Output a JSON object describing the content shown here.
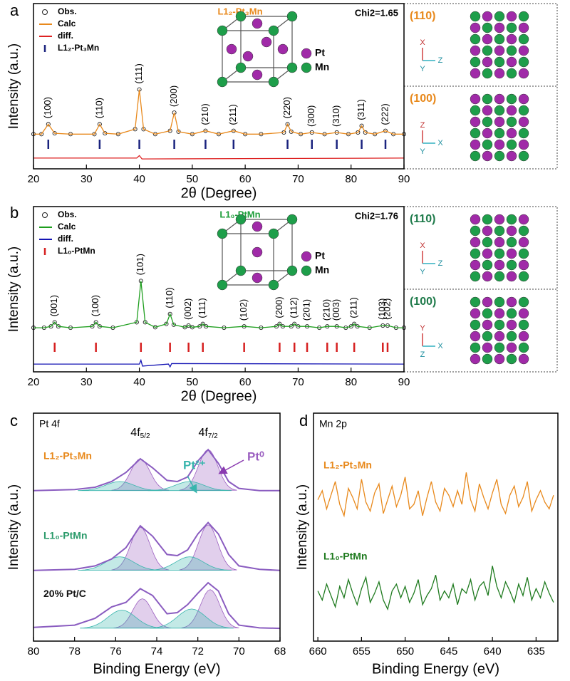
{
  "chart_data": [
    {
      "panel": "a",
      "type": "line",
      "title": "L1₂-Pt₃Mn",
      "title_color": "#e8891c",
      "annotation": "Chi2=1.65",
      "xlabel": "2θ (Degree)",
      "ylabel": "Intensity (a.u.)",
      "xlim": [
        20,
        90
      ],
      "ylim": [
        0,
        100
      ],
      "xticks": [
        20,
        30,
        40,
        50,
        60,
        70,
        80,
        90
      ],
      "series": [
        {
          "name": "Obs.",
          "color": "#222222",
          "style": "markers",
          "x": [
            20,
            21.5,
            22.8,
            24,
            27,
            31.5,
            32.5,
            33.5,
            36,
            39.2,
            40,
            40.8,
            43,
            45.8,
            46.6,
            47.4,
            50,
            52.5,
            55,
            57.8,
            60,
            63,
            67.3,
            68,
            68.7,
            70.5,
            72.6,
            75,
            77.3,
            79.5,
            81.3,
            82,
            82.7,
            84.5,
            86.5,
            88,
            90
          ],
          "values": [
            21,
            21,
            27,
            21.5,
            21,
            21,
            27,
            21.5,
            21,
            24,
            48,
            24,
            21,
            23,
            34,
            22.5,
            21,
            23,
            21,
            23,
            21,
            21,
            22,
            27,
            22.5,
            21,
            22,
            21,
            22,
            21,
            22,
            26,
            22,
            21,
            23,
            21,
            21
          ]
        },
        {
          "name": "Calc",
          "color": "#e8891c",
          "x": [
            20,
            21.5,
            22.8,
            24,
            27,
            31.5,
            32.5,
            33.5,
            36,
            39.2,
            40,
            40.8,
            43,
            45.8,
            46.6,
            47.4,
            50,
            52.5,
            55,
            57.8,
            60,
            63,
            67.3,
            68,
            68.7,
            70.5,
            72.6,
            75,
            77.3,
            79.5,
            81.3,
            82,
            82.7,
            84.5,
            86.5,
            88,
            90
          ],
          "values": [
            21,
            21,
            27,
            21.5,
            21,
            21,
            27,
            21.5,
            21,
            24,
            48,
            24,
            21,
            23,
            34,
            22.5,
            21,
            23,
            21,
            23,
            21,
            21,
            22,
            27,
            22.5,
            21,
            22,
            21,
            22,
            21,
            22,
            26,
            22,
            21,
            23,
            21,
            21
          ]
        },
        {
          "name": "diff.",
          "color": "#dd2222",
          "x": [
            20,
            39.5,
            40,
            40.5,
            90
          ],
          "values": [
            6.5,
            6.5,
            8,
            6,
            6.5
          ]
        }
      ],
      "reflections": {
        "name": "L1₂-Pt₃Mn",
        "color": "#1a237e",
        "x": [
          22.8,
          32.5,
          40,
          46.6,
          52.5,
          57.8,
          68,
          72.6,
          77.3,
          82,
          86.5
        ],
        "labels": [
          "(100)",
          "(110)",
          "(111)",
          "(200)",
          "(210)",
          "(211)",
          "(220)",
          "(300)",
          "(310)",
          "(311)",
          "(222)"
        ]
      },
      "inset": {
        "legend": [
          {
            "name": "Pt",
            "color": "#a02aa8"
          },
          {
            "name": "Mn",
            "color": "#1e9e4a"
          }
        ],
        "views": [
          {
            "label": "(110)",
            "color": "#e8891c",
            "axes": [
              "X",
              "Z",
              "Y"
            ]
          },
          {
            "label": "(100)",
            "color": "#e8891c",
            "axes": [
              "Z",
              "X",
              "Y"
            ]
          }
        ]
      }
    },
    {
      "panel": "b",
      "type": "line",
      "title": "L1₀-PtMn",
      "title_color": "#1e9e3a",
      "annotation": "Chi2=1.76",
      "xlabel": "2θ (Degree)",
      "ylabel": "Intensity (a.u.)",
      "xlim": [
        20,
        90
      ],
      "ylim": [
        0,
        100
      ],
      "xticks": [
        20,
        30,
        40,
        50,
        60,
        70,
        80,
        90
      ],
      "series": [
        {
          "name": "Obs.",
          "color": "#222222",
          "style": "markers",
          "x": [
            20,
            22,
            23.3,
            24,
            24.7,
            27,
            31.1,
            31.8,
            32.5,
            35,
            39.5,
            40.3,
            41.1,
            43,
            45.1,
            45.8,
            46.5,
            48.6,
            49.3,
            50,
            51.4,
            52,
            52.6,
            56,
            59.8,
            63,
            65.9,
            66.5,
            67.1,
            68.7,
            69.3,
            70,
            71.7,
            74,
            75.5,
            77.3,
            79,
            80,
            80.6,
            81.2,
            83.5,
            86,
            86.9,
            88.5,
            90
          ],
          "values": [
            26.7,
            26.7,
            27.5,
            30,
            27.5,
            26.7,
            27.5,
            30,
            27.5,
            26.7,
            30,
            55,
            30,
            27,
            29,
            35,
            28.5,
            27,
            28,
            27,
            27.5,
            29,
            27.5,
            26.7,
            27.5,
            26.7,
            27.5,
            29,
            27.5,
            27.5,
            29,
            27.5,
            27.5,
            26.7,
            27.5,
            27.5,
            26.7,
            27.5,
            29,
            27.5,
            26.7,
            28,
            28,
            26.7,
            26.7
          ]
        },
        {
          "name": "Calc",
          "color": "#1e9e1e",
          "x": [
            20,
            22,
            23.3,
            24,
            24.7,
            27,
            31.1,
            31.8,
            32.5,
            35,
            39.5,
            40.3,
            41.1,
            43,
            45.1,
            45.8,
            46.5,
            48.6,
            49.3,
            50,
            51.4,
            52,
            52.6,
            56,
            59.8,
            63,
            65.9,
            66.5,
            67.1,
            68.7,
            69.3,
            70,
            71.7,
            74,
            75.5,
            77.3,
            79,
            80,
            80.6,
            81.2,
            83.5,
            86,
            86.9,
            88.5,
            90
          ],
          "values": [
            26.7,
            26.7,
            27.5,
            30,
            27.5,
            26.7,
            27.5,
            30,
            27.5,
            26.7,
            30,
            55,
            30,
            27,
            29,
            35,
            28.5,
            27,
            28,
            27,
            27.5,
            29,
            27.5,
            26.7,
            27.5,
            26.7,
            27.5,
            29,
            27.5,
            27.5,
            29,
            27.5,
            27.5,
            26.7,
            27.5,
            27.5,
            26.7,
            27.5,
            29,
            27.5,
            26.7,
            28,
            28,
            26.7,
            26.7
          ]
        },
        {
          "name": "diff.",
          "color": "#1414b4",
          "x": [
            20,
            40,
            40.3,
            40.6,
            45.5,
            45.8,
            46.1,
            90
          ],
          "values": [
            4.7,
            4.7,
            7,
            3.5,
            4.7,
            3,
            5,
            4.7
          ]
        }
      ],
      "reflections": {
        "name": "L1₀-PtMn",
        "color": "#d62020",
        "x": [
          24,
          31.8,
          40.3,
          45.8,
          49.3,
          52,
          59.8,
          66.5,
          69.3,
          71.7,
          75.5,
          77.3,
          80.6,
          86,
          86.9
        ],
        "labels": [
          "(001)",
          "(100)",
          "(101)",
          "(110)",
          "(002)",
          "(111)",
          "(102)",
          "(200)",
          "(112)",
          "(201)",
          "(210)",
          "(003)",
          "(211)",
          "(103)",
          "(202)"
        ]
      },
      "inset": {
        "legend": [
          {
            "name": "Pt",
            "color": "#a02aa8"
          },
          {
            "name": "Mn",
            "color": "#1e9e4a"
          }
        ],
        "views": [
          {
            "label": "(110)",
            "color": "#1e7a4a",
            "axes": [
              "X",
              "Z",
              "Y"
            ]
          },
          {
            "label": "(100)",
            "color": "#1e7a4a",
            "axes": [
              "Y",
              "X",
              "Z"
            ]
          }
        ]
      }
    },
    {
      "panel": "c",
      "type": "line",
      "title": "Pt 4f",
      "xlabel": "Binding Energy (eV)",
      "ylabel": "Intensity (a.u.)",
      "xlim": [
        80,
        68
      ],
      "ylim": [
        0,
        100
      ],
      "xticks": [
        80,
        78,
        76,
        74,
        72,
        70,
        68
      ],
      "peak_labels": [
        {
          "x": 74.8,
          "text": "4f",
          "sub": "5/2"
        },
        {
          "x": 71.5,
          "text": "4f",
          "sub": "7/2"
        }
      ],
      "species": [
        {
          "name": "Pt⁰",
          "color": "#9b5fc0"
        },
        {
          "name": "Pt²⁺",
          "color": "#38b5ad"
        }
      ],
      "series": [
        {
          "name": "L1₂-Pt₃Mn",
          "color": "#8a5cc0",
          "name_color": "#e8891c",
          "baseline": 66,
          "x": [
            80,
            78,
            77,
            76.2,
            75.5,
            74.8,
            74.2,
            73.5,
            73,
            72.5,
            72,
            71.5,
            71,
            70.5,
            70,
            69,
            68
          ],
          "values": [
            66,
            66.5,
            67.5,
            70,
            74,
            80,
            76,
            70.5,
            70,
            72,
            79,
            84,
            78,
            70,
            67,
            66,
            66
          ],
          "components": [
            {
              "centers": [
                74.8,
                71.5
              ],
              "heights": [
                14,
                18
              ],
              "width": 1.1
            },
            {
              "centers": [
                75.8,
                72.4
              ],
              "heights": [
                4,
                4
              ],
              "width": 1.6
            }
          ]
        },
        {
          "name": "L1₀-PtMn",
          "color": "#8a5cc0",
          "name_color": "#2a9a6a",
          "baseline": 31,
          "x": [
            80,
            78,
            77,
            76.2,
            75.5,
            74.8,
            74.2,
            73.5,
            73,
            72.5,
            72,
            71.5,
            71,
            70.5,
            70,
            69,
            68
          ],
          "values": [
            31,
            31.5,
            33,
            36,
            41,
            50.6,
            46,
            38,
            37.5,
            40,
            47,
            52,
            47,
            38,
            33,
            31.5,
            31
          ],
          "components": [
            {
              "centers": [
                74.8,
                71.5
              ],
              "heights": [
                19,
                20
              ],
              "width": 1.1
            },
            {
              "centers": [
                75.8,
                72.4
              ],
              "heights": [
                6,
                6
              ],
              "width": 1.6
            }
          ]
        },
        {
          "name": "20% Pt/C",
          "color": "#8a5cc0",
          "name_color": "#111111",
          "baseline": 5.6,
          "x": [
            80,
            78,
            77,
            76.2,
            75.5,
            74.8,
            74.2,
            73.5,
            73,
            72.5,
            72,
            71.5,
            71,
            70.5,
            70,
            69,
            68
          ],
          "values": [
            6,
            7,
            10,
            15,
            17,
            23,
            20,
            12,
            12.5,
            16,
            21,
            25.6,
            22,
            12,
            7,
            5.8,
            5.6
          ],
          "components": [
            {
              "centers": [
                74.7,
                71.4
              ],
              "heights": [
                13,
                17
              ],
              "width": 1.1
            },
            {
              "centers": [
                75.7,
                72.3
              ],
              "heights": [
                8,
                8.5
              ],
              "width": 1.6
            }
          ]
        }
      ]
    },
    {
      "panel": "d",
      "type": "line",
      "title": "Mn 2p",
      "xlabel": "Binding Energy (eV)",
      "ylabel": "Intensity (a.u.)",
      "xlim": [
        660.5,
        632.5
      ],
      "ylim": [
        0,
        100
      ],
      "xticks": [
        660,
        655,
        650,
        645,
        640,
        635
      ],
      "series": [
        {
          "name": "L1₂-Pt₃Mn",
          "color": "#e8891c",
          "x": [
            660,
            659.5,
            659,
            658.5,
            658,
            657.5,
            657,
            656.5,
            656,
            655.5,
            655,
            654.5,
            654,
            653.5,
            653,
            652.5,
            652,
            651.5,
            651,
            650.5,
            650,
            649.5,
            649,
            648.5,
            648,
            647.5,
            647,
            646.5,
            646,
            645.5,
            645,
            644.5,
            644,
            643.5,
            643,
            642.5,
            642,
            641.5,
            641,
            640.5,
            640,
            639.5,
            639,
            638.5,
            638,
            637.5,
            637,
            636.5,
            636,
            635.5,
            635,
            634.5,
            634,
            633.5,
            633
          ],
          "values": [
            62,
            66,
            58,
            64,
            70,
            60,
            55,
            67,
            63,
            58,
            71,
            61,
            57,
            65,
            69,
            56,
            62,
            68,
            59,
            64,
            72,
            58,
            60,
            66,
            55,
            63,
            70,
            61,
            57,
            67,
            64,
            59,
            66,
            60,
            74,
            62,
            57,
            69,
            63,
            58,
            65,
            71,
            60,
            56,
            64,
            68,
            59,
            63,
            70,
            57,
            62,
            66,
            61,
            58,
            64
          ]
        },
        {
          "name": "L1₀-PtMn",
          "color": "#1e7a1e",
          "x": [
            660,
            659.5,
            659,
            658.5,
            658,
            657.5,
            657,
            656.5,
            656,
            655.5,
            655,
            654.5,
            654,
            653.5,
            653,
            652.5,
            652,
            651.5,
            651,
            650.5,
            650,
            649.5,
            649,
            648.5,
            648,
            647.5,
            647,
            646.5,
            646,
            645.5,
            645,
            644.5,
            644,
            643.5,
            643,
            642.5,
            642,
            641.5,
            641,
            640.5,
            640,
            639.5,
            639,
            638.5,
            638,
            637.5,
            637,
            636.5,
            636,
            635.5,
            635,
            634.5,
            634,
            633.5,
            633
          ],
          "values": [
            22,
            18,
            25,
            20,
            15,
            24,
            19,
            27,
            21,
            16,
            23,
            28,
            17,
            21,
            26,
            18,
            14,
            22,
            25,
            19,
            24,
            17,
            21,
            27,
            16,
            20,
            23,
            29,
            18,
            22,
            19,
            25,
            16,
            23,
            21,
            27,
            18,
            24,
            26,
            20,
            33,
            24,
            19,
            26,
            22,
            17,
            25,
            20,
            28,
            18,
            23,
            19,
            26,
            21,
            17
          ]
        }
      ]
    }
  ]
}
